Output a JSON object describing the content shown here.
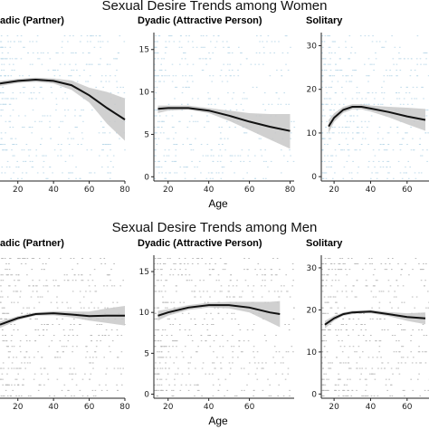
{
  "sections": [
    {
      "title": "Sexual Desire Trends among Women"
    },
    {
      "title": "Sexual Desire Trends among Men"
    }
  ],
  "colors": {
    "women_points": "#7fb7d6",
    "men_points": "#555555",
    "trend": "#111111",
    "band": "#c8c8c8"
  },
  "chart_data": [
    {
      "type": "scatter",
      "group": "Women",
      "title": "Dyadic (Partner)",
      "xlabel": "",
      "ylabel": "",
      "xlim": [
        10,
        80
      ],
      "ylim": [
        0,
        35
      ],
      "x_ticks": [
        20,
        40,
        60,
        80
      ],
      "y_ticks": [],
      "trend": {
        "x": [
          10,
          20,
          30,
          40,
          50,
          60,
          70,
          80
        ],
        "y": [
          23,
          23.6,
          23.9,
          23.6,
          22.6,
          20.2,
          17.2,
          14.5
        ]
      },
      "band": {
        "x": [
          10,
          20,
          30,
          40,
          50,
          60,
          70,
          80
        ],
        "lower": [
          22.4,
          23.1,
          23.4,
          23,
          21.5,
          18.5,
          13.5,
          9.5
        ],
        "upper": [
          23.6,
          24.1,
          24.4,
          24.2,
          23.7,
          22,
          21,
          19.5
        ]
      }
    },
    {
      "type": "scatter",
      "group": "Women",
      "title": "Dyadic (Attractive Person)",
      "xlabel": "Age",
      "ylabel": "",
      "xlim": [
        13,
        82
      ],
      "ylim": [
        -0.5,
        17
      ],
      "x_ticks": [
        20,
        40,
        60,
        80
      ],
      "y_ticks": [
        0,
        5,
        10,
        15
      ],
      "trend": {
        "x": [
          15,
          20,
          30,
          40,
          50,
          60,
          70,
          80
        ],
        "y": [
          8,
          8.1,
          8.1,
          7.8,
          7.2,
          6.5,
          5.9,
          5.4
        ]
      },
      "band": {
        "x": [
          15,
          20,
          30,
          40,
          50,
          60,
          70,
          80
        ],
        "lower": [
          7.5,
          7.8,
          7.9,
          7.5,
          6.6,
          5.5,
          4.4,
          3.3
        ],
        "upper": [
          8.4,
          8.4,
          8.4,
          8.1,
          7.8,
          7.5,
          7.4,
          7.4
        ]
      }
    },
    {
      "type": "scatter",
      "group": "Women",
      "title": "Solitary",
      "xlabel": "",
      "ylabel": "",
      "xlim": [
        13,
        72
      ],
      "ylim": [
        -1,
        33
      ],
      "x_ticks": [
        20,
        40,
        60
      ],
      "y_ticks": [
        0,
        10,
        20,
        30
      ],
      "trend": {
        "x": [
          17,
          20,
          25,
          30,
          35,
          40,
          50,
          60,
          70
        ],
        "y": [
          11.5,
          13.5,
          15.3,
          16,
          16,
          15.6,
          14.8,
          13.8,
          13
        ]
      },
      "band": {
        "x": [
          17,
          20,
          25,
          30,
          35,
          40,
          50,
          60,
          70
        ],
        "lower": [
          10,
          12.5,
          14.6,
          15.4,
          15.4,
          14.9,
          13.6,
          12,
          10.5
        ],
        "upper": [
          13,
          14.5,
          16,
          16.6,
          16.6,
          16.3,
          16,
          15.8,
          15.5
        ]
      }
    },
    {
      "type": "scatter",
      "group": "Men",
      "title": "Dyadic (Partner)",
      "xlabel": "",
      "ylabel": "",
      "xlim": [
        10,
        80
      ],
      "ylim": [
        0,
        35
      ],
      "x_ticks": [
        20,
        40,
        60,
        80
      ],
      "y_ticks": [],
      "trend": {
        "x": [
          10,
          20,
          30,
          40,
          50,
          60,
          70,
          80
        ],
        "y": [
          18,
          19.6,
          20.6,
          20.8,
          20.5,
          20.1,
          20.2,
          20.2
        ]
      },
      "band": {
        "x": [
          10,
          20,
          30,
          40,
          50,
          60,
          70,
          80
        ],
        "lower": [
          17.2,
          19.1,
          20.2,
          20.3,
          19.8,
          19,
          18.4,
          17.8
        ],
        "upper": [
          18.8,
          20.1,
          21,
          21.3,
          21.2,
          21.2,
          22,
          22.6
        ]
      }
    },
    {
      "type": "scatter",
      "group": "Men",
      "title": "Dyadic (Attractive Person)",
      "xlabel": "Age",
      "ylabel": "",
      "xlim": [
        13,
        82
      ],
      "ylim": [
        -0.5,
        17
      ],
      "x_ticks": [
        20,
        40,
        60
      ],
      "y_ticks": [
        0,
        5,
        10,
        15
      ],
      "trend": {
        "x": [
          15,
          20,
          30,
          40,
          50,
          60,
          70,
          75
        ],
        "y": [
          9.6,
          10,
          10.6,
          10.9,
          10.9,
          10.6,
          10,
          9.8
        ]
      },
      "band": {
        "x": [
          15,
          20,
          30,
          40,
          50,
          60,
          70,
          75
        ],
        "lower": [
          9,
          9.6,
          10.3,
          10.6,
          10.5,
          10,
          8.8,
          8.2
        ],
        "upper": [
          10.2,
          10.4,
          10.9,
          11.2,
          11.3,
          11.3,
          11.3,
          11.4
        ]
      }
    },
    {
      "type": "scatter",
      "group": "Men",
      "title": "Solitary",
      "xlabel": "",
      "ylabel": "",
      "xlim": [
        13,
        72
      ],
      "ylim": [
        -1,
        33
      ],
      "x_ticks": [
        20,
        40,
        60
      ],
      "y_ticks": [
        0,
        10,
        20,
        30
      ],
      "trend": {
        "x": [
          15,
          20,
          25,
          30,
          35,
          40,
          50,
          60,
          70
        ],
        "y": [
          16.5,
          18,
          19,
          19.4,
          19.5,
          19.6,
          19,
          18.3,
          18
        ]
      },
      "band": {
        "x": [
          15,
          20,
          25,
          30,
          35,
          40,
          50,
          60,
          70
        ],
        "lower": [
          15.6,
          17.4,
          18.6,
          19,
          19.2,
          19.2,
          18.5,
          17.4,
          16.6
        ],
        "upper": [
          17.4,
          18.6,
          19.4,
          19.8,
          19.9,
          20,
          19.5,
          19.2,
          19.4
        ]
      }
    }
  ]
}
